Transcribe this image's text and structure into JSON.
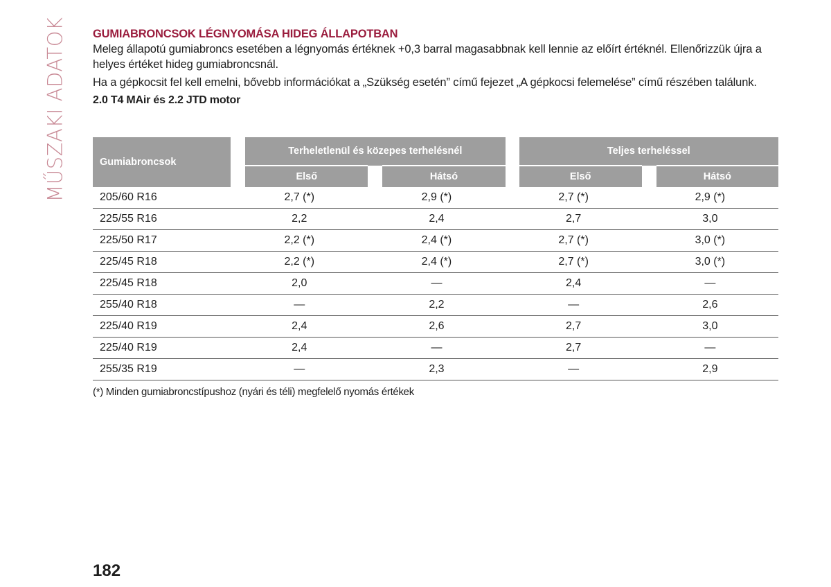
{
  "side_tab": "MŰSZAKI ADATOK",
  "heading": "GUMIABRONCSOK LÉGNYOMÁSA HIDEG ÁLLAPOTBAN",
  "paragraphs": [
    "Meleg állapotú gumiabroncs esetében a légnyomás értéknek +0,3 barral magasabbnak kell lennie az előírt értéknél. Ellenőrizzük újra a helyes értéket hideg gumiabroncsnál.",
    "Ha a gépkocsit fel kell emelni, bővebb információkat a „Szükség esetén” című fejezet „A gépkocsi felemelése” című részében találunk."
  ],
  "subheading": "2.0 T4 MAir és 2.2 JTD motor",
  "table": {
    "col_tire": "Gumiabroncsok",
    "group_partial": "Terheletlenül és közepes terhelésnél",
    "group_full": "Teljes terheléssel",
    "front": "Első",
    "rear": "Hátsó",
    "rows": [
      [
        "205/60 R16",
        "2,7 (*)",
        "2,9 (*)",
        "2,7 (*)",
        "2,9 (*)"
      ],
      [
        "225/55 R16",
        "2,2",
        "2,4",
        "2,7",
        "3,0"
      ],
      [
        "225/50 R17",
        "2,2 (*)",
        "2,4 (*)",
        "2,7 (*)",
        "3,0 (*)"
      ],
      [
        "225/45 R18",
        "2,2 (*)",
        "2,4 (*)",
        "2,7 (*)",
        "3,0 (*)"
      ],
      [
        "225/45 R18",
        "2,0",
        "—",
        "2,4",
        "—"
      ],
      [
        "255/40 R18",
        "—",
        "2,2",
        "—",
        "2,6"
      ],
      [
        "225/40 R19",
        "2,4",
        "2,6",
        "2,7",
        "3,0"
      ],
      [
        "225/40 R19",
        "2,4",
        "—",
        "2,7",
        "—"
      ],
      [
        "255/35 R19",
        "—",
        "2,3",
        "—",
        "2,9"
      ]
    ]
  },
  "footnote": "(*) Minden gumiabroncstípushoz (nyári és téli) megfelelő nyomás értékek",
  "page_number": "182",
  "colors": {
    "heading": "#9a1c3d",
    "side_tab": "#c98a96",
    "table_header_bg": "#9e9e9e"
  }
}
